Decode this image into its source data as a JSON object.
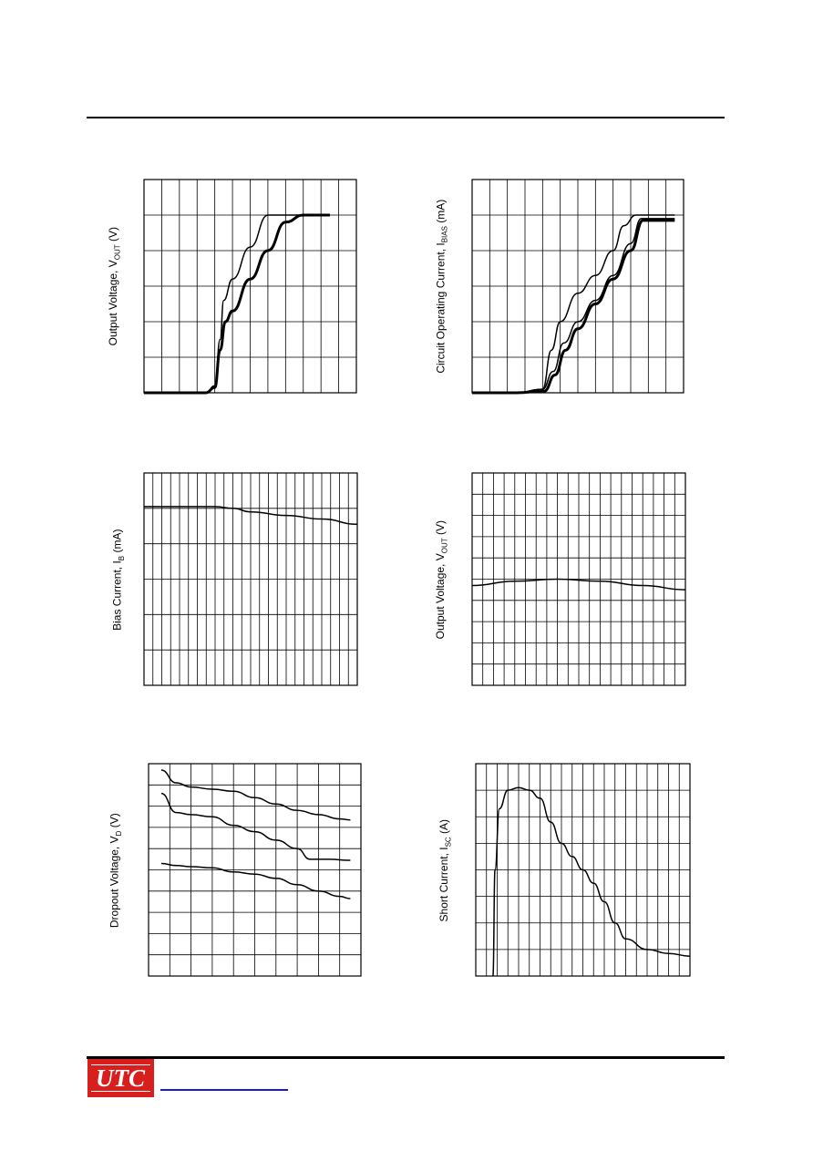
{
  "chart_data": [
    {
      "type": "line",
      "id": "vout-vs-vin",
      "title": "",
      "ylabel": "Output Voltage, V",
      "ylabel_sub": "OUT",
      "ylabel_unit": "(V)",
      "xlim": [
        0,
        12
      ],
      "ylim": [
        0,
        6
      ],
      "x_grid": 12,
      "y_grid": 6,
      "series": [
        {
          "x": [
            0,
            3.5,
            4.0,
            4.3,
            4.5,
            5.0,
            6.0,
            7.0,
            8.0,
            9.0,
            9.3,
            10.5
          ],
          "y": [
            0,
            0,
            0.2,
            1.5,
            2.6,
            3.2,
            4.1,
            5.0,
            5.0,
            5.0,
            5.0,
            5.0
          ],
          "weight": 1.5
        },
        {
          "x": [
            0,
            3.5,
            4.0,
            4.3,
            4.6,
            5.0,
            6.0,
            7.0,
            8.0,
            9.0,
            9.3,
            10.5
          ],
          "y": [
            0,
            0,
            0.15,
            1.2,
            2.0,
            2.3,
            3.2,
            4.0,
            4.8,
            5.0,
            5.0,
            5.0
          ],
          "weight": 3
        }
      ]
    },
    {
      "type": "line",
      "id": "ibias-vs-vin",
      "title": "",
      "ylabel": "Circuit Operating Current, I",
      "ylabel_sub": "BIAS",
      "ylabel_unit": "(mA)",
      "xlim": [
        0,
        12
      ],
      "ylim": [
        0,
        6
      ],
      "x_grid": 12,
      "y_grid": 6,
      "series": [
        {
          "x": [
            0,
            2.5,
            4.0,
            4.5,
            5.0,
            6.0,
            7.0,
            8.0,
            8.6,
            9.3,
            11.5
          ],
          "y": [
            0,
            0,
            0.1,
            1.2,
            2.0,
            2.8,
            3.3,
            4.0,
            4.7,
            5.0,
            5.0
          ],
          "weight": 1.5
        },
        {
          "x": [
            0,
            2.5,
            4.0,
            4.6,
            5.2,
            6.0,
            7.0,
            8.0,
            9.0,
            9.6,
            11.5
          ],
          "y": [
            0,
            0,
            0.1,
            0.6,
            1.4,
            2.0,
            2.6,
            3.3,
            4.2,
            4.9,
            4.9
          ],
          "weight": 1.5
        },
        {
          "x": [
            0,
            2.5,
            4.1,
            4.7,
            5.3,
            6.0,
            7.0,
            8.0,
            9.0,
            9.7,
            11.5
          ],
          "y": [
            0,
            0,
            0.05,
            0.5,
            1.2,
            1.8,
            2.5,
            3.2,
            4.0,
            4.85,
            4.85
          ],
          "weight": 3
        }
      ]
    },
    {
      "type": "line",
      "id": "ibias-vs-temp",
      "title": "",
      "ylabel": "Bias Current, I",
      "ylabel_sub": "B",
      "ylabel_unit": "(mA)",
      "xlim": [
        0,
        6
      ],
      "ylim": [
        0,
        6
      ],
      "x_grid": 24,
      "y_grid": 6,
      "series": [
        {
          "x": [
            0,
            1,
            2,
            2.5,
            3,
            4,
            5,
            6
          ],
          "y": [
            5.05,
            5.05,
            5.05,
            5.0,
            4.9,
            4.8,
            4.7,
            4.55
          ],
          "weight": 1.5
        }
      ]
    },
    {
      "type": "line",
      "id": "vout-vs-temp",
      "title": "",
      "ylabel": "Output Voltage, V",
      "ylabel_sub": "OUT",
      "ylabel_unit": "(V)",
      "xlim": [
        0,
        10
      ],
      "ylim": [
        0,
        10
      ],
      "x_grid": 20,
      "y_grid": 10,
      "series": [
        {
          "x": [
            0,
            2,
            4,
            6,
            8,
            10
          ],
          "y": [
            4.7,
            4.9,
            5.0,
            4.9,
            4.7,
            4.5
          ],
          "weight": 1.5
        }
      ]
    },
    {
      "type": "line",
      "id": "vdrop-vs-temp",
      "title": "",
      "ylabel": "Dropout Voltage, V",
      "ylabel_sub": "D",
      "ylabel_unit": "(V)",
      "xlim": [
        0,
        10
      ],
      "ylim": [
        0,
        10
      ],
      "x_grid": 10,
      "y_grid": 10,
      "series": [
        {
          "x": [
            0.6,
            1.3,
            2,
            3,
            4,
            5,
            6,
            7,
            8,
            9,
            9.5
          ],
          "y": [
            9.7,
            9.1,
            8.9,
            8.8,
            8.7,
            8.4,
            8.1,
            7.8,
            7.6,
            7.4,
            7.35
          ],
          "weight": 1.5
        },
        {
          "x": [
            0.6,
            1.3,
            2,
            3,
            4,
            5,
            6,
            7,
            7.6,
            8.5,
            9.5
          ],
          "y": [
            8.6,
            7.7,
            7.6,
            7.5,
            7.1,
            6.8,
            6.4,
            6.0,
            5.5,
            5.5,
            5.45
          ],
          "weight": 1.5
        },
        {
          "x": [
            0.6,
            1.3,
            2,
            3,
            4,
            5,
            6,
            7,
            8,
            9,
            9.5
          ],
          "y": [
            5.3,
            5.2,
            5.15,
            5.1,
            4.9,
            4.8,
            4.6,
            4.3,
            4.0,
            3.75,
            3.65
          ],
          "weight": 1.5
        }
      ]
    },
    {
      "type": "line",
      "id": "isc-vs-vin",
      "title": "",
      "ylabel": "Short Current, I",
      "ylabel_sub": "SC",
      "ylabel_unit": "(A)",
      "xlim": [
        0,
        20
      ],
      "ylim": [
        0,
        8
      ],
      "x_grid": 20,
      "y_grid": 8,
      "series": [
        {
          "x": [
            1.6,
            1.8,
            2.2,
            3.0,
            4.0,
            5.0,
            6.0,
            7.0,
            8.0,
            9.0,
            10.0,
            11.0,
            12.0,
            13.0,
            14.0,
            16.0,
            18.0,
            20.0
          ],
          "y": [
            0,
            4.0,
            6.3,
            7.0,
            7.1,
            7.0,
            6.7,
            5.8,
            5.0,
            4.5,
            4.0,
            3.5,
            2.8,
            2.0,
            1.4,
            1.0,
            0.85,
            0.75
          ],
          "weight": 1.5
        }
      ]
    }
  ]
}
